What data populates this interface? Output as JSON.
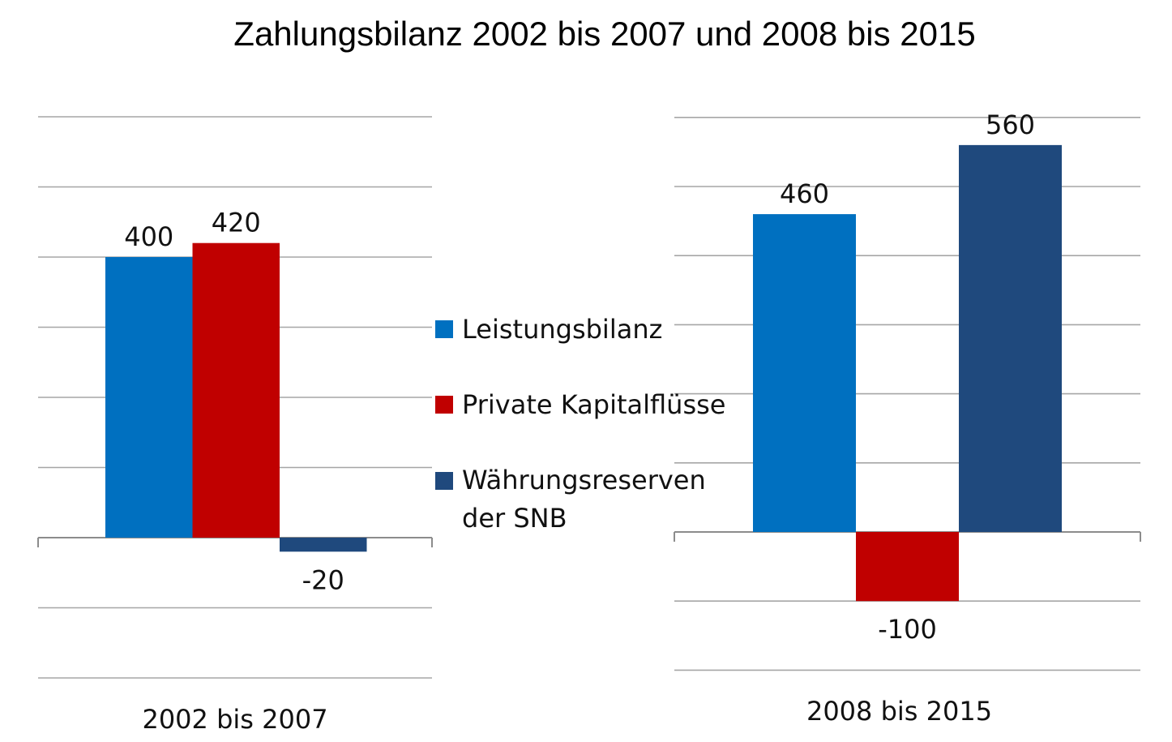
{
  "title": "Zahlungsbilanz 2002 bis 2007 und 2008 bis 2015",
  "legend": [
    {
      "label": "Leistungsbilanz",
      "color": "#0070C0"
    },
    {
      "label": "Private Kapitalflüsse",
      "color": "#C00000"
    },
    {
      "label": "Währungsreserven",
      "label2": "der SNB",
      "color": "#1F497D"
    }
  ],
  "chart_data": [
    {
      "type": "bar",
      "xlabel": "2002 bis 2007",
      "series": [
        {
          "name": "Leistungsbilanz",
          "value": 400,
          "label": "400"
        },
        {
          "name": "Private Kapitalflüsse",
          "value": 420,
          "label": "420"
        },
        {
          "name": "Währungsreserven der SNB",
          "value": -20,
          "label": "-20"
        }
      ],
      "ylim": [
        -200,
        600
      ],
      "grid": true
    },
    {
      "type": "bar",
      "xlabel": "2008 bis 2015",
      "series": [
        {
          "name": "Leistungsbilanz",
          "value": 460,
          "label": "460"
        },
        {
          "name": "Private Kapitalflüsse",
          "value": -100,
          "label": "-100"
        },
        {
          "name": "Währungsreserven der SNB",
          "value": 560,
          "label": "560"
        }
      ],
      "ylim": [
        -200,
        600
      ],
      "grid": true
    }
  ]
}
